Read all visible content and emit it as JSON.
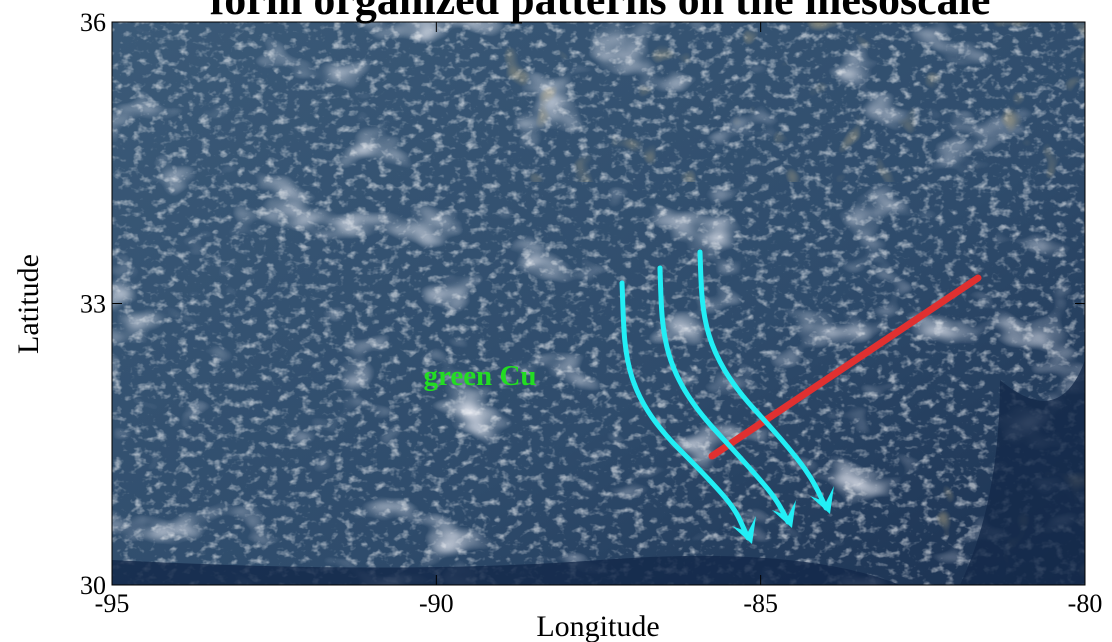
{
  "chart_data": {
    "type": "image",
    "title": "form organized patterns on the mesoscale",
    "xlabel": "Longitude",
    "ylabel": "Latitude",
    "xlim": [
      -95,
      -80
    ],
    "ylim": [
      30,
      36
    ],
    "xticks": [
      -95,
      -90,
      -85,
      -80
    ],
    "yticks": [
      30,
      33,
      36
    ],
    "annotations": [
      {
        "text": "green Cu",
        "color": "#22dd22"
      }
    ]
  }
}
